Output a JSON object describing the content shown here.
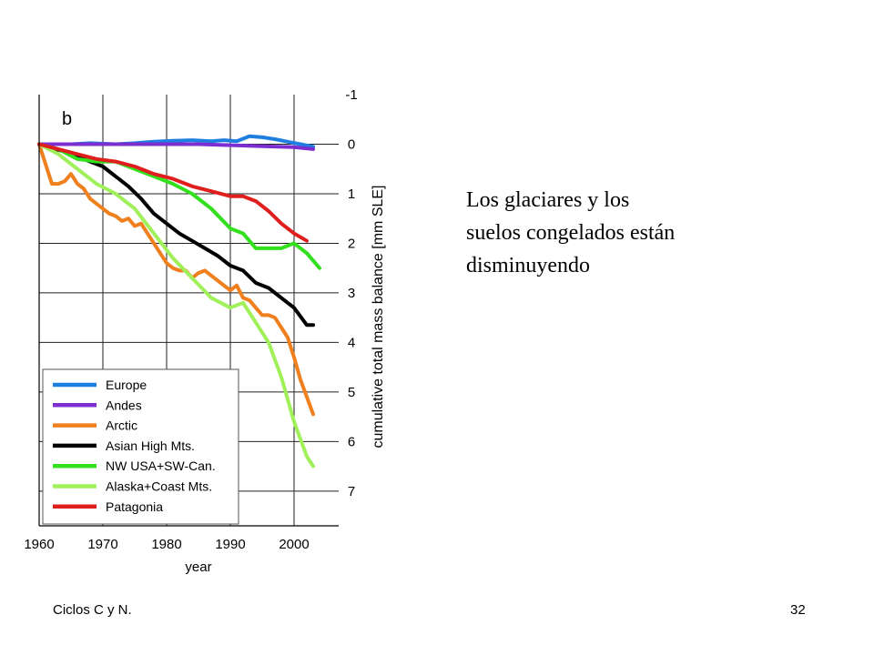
{
  "slide": {
    "text_line_1": "Los glaciares y los",
    "text_line_2": "suelos congelados están",
    "text_line_3": "disminuyendo",
    "footer_left": "Ciclos C y N.",
    "page_number": "32"
  },
  "chart_data": {
    "type": "line",
    "panel_label": "b",
    "xlabel": "year",
    "ylabel": "cumulative total mass balance [mm SLE]",
    "xlim": [
      1960,
      2007
    ],
    "ylim": [
      -1,
      7.7
    ],
    "y_inverted": true,
    "y_axis_side": "right",
    "grid": true,
    "legend_position": "bottom-left",
    "x_ticks": [
      1960,
      1970,
      1980,
      1990,
      2000
    ],
    "y_ticks": [
      -1,
      0,
      1,
      2,
      3,
      4,
      5,
      6,
      7
    ],
    "series": [
      {
        "name": "Europe",
        "color": "#1e7fe0",
        "x": [
          1960,
          1965,
          1968,
          1972,
          1975,
          1978,
          1981,
          1984,
          1987,
          1989,
          1991,
          1993,
          1995,
          1997,
          1999,
          2001,
          2003
        ],
        "y": [
          0.0,
          0.0,
          -0.02,
          0.0,
          -0.02,
          -0.05,
          -0.07,
          -0.08,
          -0.06,
          -0.08,
          -0.06,
          -0.16,
          -0.14,
          -0.1,
          -0.05,
          0.0,
          0.05
        ]
      },
      {
        "name": "Andes",
        "color": "#7c2ed0",
        "x": [
          1960,
          1965,
          1970,
          1975,
          1980,
          1985,
          1990,
          1995,
          2000,
          2003
        ],
        "y": [
          0.0,
          0.0,
          0.0,
          0.0,
          0.0,
          0.0,
          0.02,
          0.04,
          0.06,
          0.1
        ]
      },
      {
        "name": "Arctic",
        "color": "#f07f1e",
        "x": [
          1960,
          1961,
          1962,
          1963,
          1964,
          1965,
          1966,
          1967,
          1968,
          1969,
          1970,
          1971,
          1972,
          1973,
          1974,
          1975,
          1976,
          1977,
          1978,
          1979,
          1980,
          1981,
          1982,
          1983,
          1984,
          1985,
          1986,
          1987,
          1988,
          1989,
          1990,
          1991,
          1992,
          1993,
          1994,
          1995,
          1996,
          1997,
          1998,
          1999,
          2000,
          2001,
          2002,
          2003
        ],
        "y": [
          0.0,
          0.4,
          0.8,
          0.8,
          0.75,
          0.6,
          0.8,
          0.9,
          1.1,
          1.2,
          1.3,
          1.4,
          1.45,
          1.55,
          1.5,
          1.65,
          1.6,
          1.8,
          2.0,
          2.2,
          2.4,
          2.5,
          2.55,
          2.55,
          2.7,
          2.6,
          2.55,
          2.65,
          2.75,
          2.85,
          2.95,
          2.85,
          3.1,
          3.15,
          3.3,
          3.45,
          3.45,
          3.5,
          3.7,
          3.9,
          4.3,
          4.75,
          5.1,
          5.45
        ]
      },
      {
        "name": "Asian High Mts.",
        "color": "#000000",
        "x": [
          1960,
          1962,
          1964,
          1966,
          1968,
          1970,
          1972,
          1974,
          1976,
          1978,
          1980,
          1982,
          1984,
          1986,
          1988,
          1990,
          1992,
          1994,
          1996,
          1998,
          2000,
          2002,
          2003
        ],
        "y": [
          0.0,
          0.08,
          0.15,
          0.25,
          0.35,
          0.45,
          0.65,
          0.85,
          1.1,
          1.4,
          1.6,
          1.8,
          1.95,
          2.1,
          2.25,
          2.45,
          2.55,
          2.8,
          2.9,
          3.1,
          3.3,
          3.65,
          3.65
        ]
      },
      {
        "name": "NW USA+SW-Can.",
        "color": "#33e01e",
        "x": [
          1960,
          1963,
          1966,
          1969,
          1972,
          1975,
          1978,
          1981,
          1984,
          1987,
          1990,
          1992,
          1994,
          1996,
          1998,
          2000,
          2002,
          2004
        ],
        "y": [
          0.0,
          0.1,
          0.3,
          0.35,
          0.35,
          0.5,
          0.65,
          0.8,
          1.0,
          1.3,
          1.7,
          1.8,
          2.1,
          2.1,
          2.1,
          2.0,
          2.2,
          2.5
        ]
      },
      {
        "name": "Alaska+Coast Mts.",
        "color": "#a0f05a",
        "x": [
          1960,
          1963,
          1966,
          1969,
          1972,
          1975,
          1978,
          1981,
          1984,
          1987,
          1990,
          1992,
          1994,
          1996,
          1998,
          2000,
          2002,
          2003
        ],
        "y": [
          0.0,
          0.2,
          0.5,
          0.8,
          1.0,
          1.3,
          1.8,
          2.3,
          2.7,
          3.1,
          3.3,
          3.2,
          3.6,
          4.0,
          4.7,
          5.6,
          6.3,
          6.5
        ]
      },
      {
        "name": "Patagonia",
        "color": "#e01e1e",
        "x": [
          1960,
          1963,
          1966,
          1969,
          1972,
          1975,
          1978,
          1981,
          1984,
          1987,
          1990,
          1992,
          1994,
          1996,
          1998,
          2000,
          2002
        ],
        "y": [
          0.0,
          0.1,
          0.2,
          0.3,
          0.35,
          0.45,
          0.6,
          0.7,
          0.85,
          0.95,
          1.05,
          1.05,
          1.15,
          1.35,
          1.6,
          1.8,
          1.95
        ]
      }
    ]
  }
}
